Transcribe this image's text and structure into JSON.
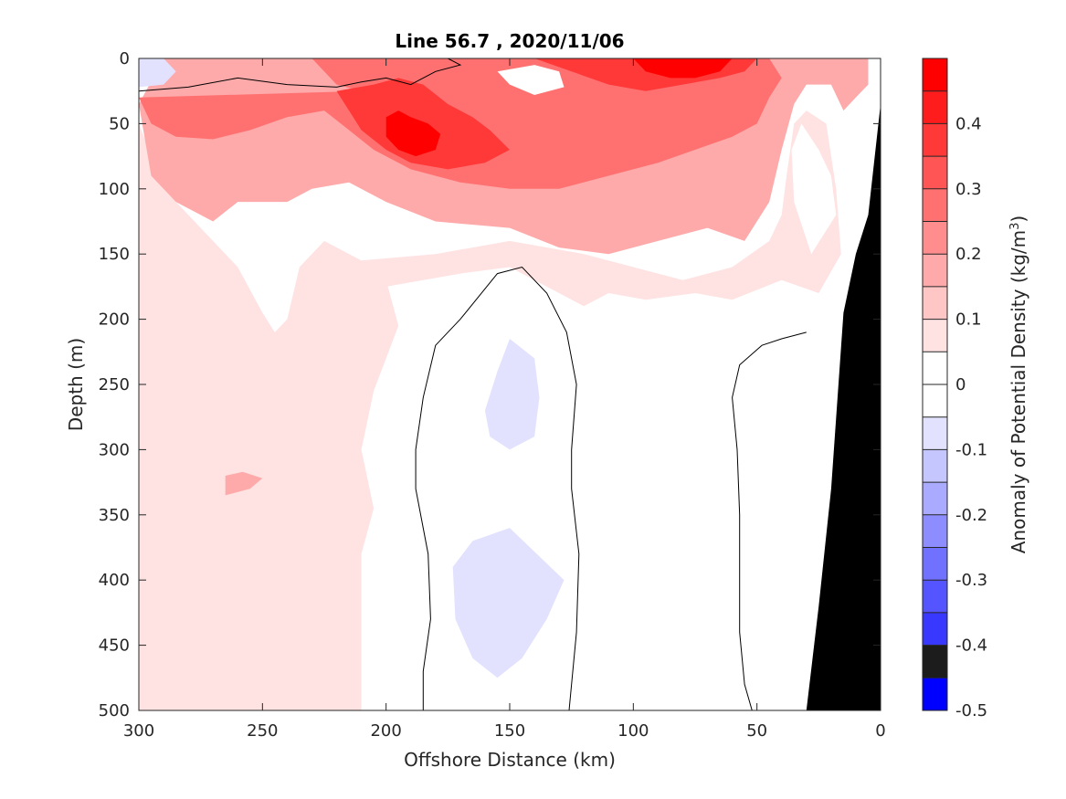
{
  "chart_data": {
    "type": "heatmap",
    "title": "Line 56.7 , 2020/11/06",
    "xlabel": "Offshore Distance (km)",
    "ylabel": "Depth (m)",
    "xlim": [
      300,
      0
    ],
    "ylim": [
      0,
      500
    ],
    "x_reversed": true,
    "y_reversed": true,
    "xticks": [
      "300",
      "250",
      "200",
      "150",
      "100",
      "50",
      "0"
    ],
    "yticks": [
      "0",
      "50",
      "100",
      "150",
      "200",
      "250",
      "300",
      "350",
      "400",
      "450",
      "500"
    ],
    "colorbar": {
      "label_main": "Anomaly of Potential Density (kg/m",
      "label_sup": "3",
      "label_close": ")",
      "clim": [
        -0.5,
        0.5
      ],
      "ticks": [
        "0.4",
        "0.3",
        "0.2",
        "0.1",
        "0",
        "-0.1",
        "-0.2",
        "-0.3",
        "-0.4",
        "-0.5"
      ],
      "levels": [
        {
          "lo": 0.45,
          "hi": 0.5,
          "color": "#ff0000"
        },
        {
          "lo": 0.4,
          "hi": 0.45,
          "color": "#ff1c1c"
        },
        {
          "lo": 0.35,
          "hi": 0.4,
          "color": "#ff3838"
        },
        {
          "lo": 0.3,
          "hi": 0.35,
          "color": "#ff5555"
        },
        {
          "lo": 0.25,
          "hi": 0.3,
          "color": "#ff7171"
        },
        {
          "lo": 0.2,
          "hi": 0.25,
          "color": "#ff8d8d"
        },
        {
          "lo": 0.15,
          "hi": 0.2,
          "color": "#ffaaaa"
        },
        {
          "lo": 0.1,
          "hi": 0.15,
          "color": "#ffc6c6"
        },
        {
          "lo": 0.05,
          "hi": 0.1,
          "color": "#ffe2e2"
        },
        {
          "lo": 0.0,
          "hi": 0.05,
          "color": "#ffffff"
        },
        {
          "lo": -0.05,
          "hi": 0.0,
          "color": "#ffffff"
        },
        {
          "lo": -0.1,
          "hi": -0.05,
          "color": "#e2e2ff"
        },
        {
          "lo": -0.15,
          "hi": -0.1,
          "color": "#c6c6ff"
        },
        {
          "lo": -0.2,
          "hi": -0.15,
          "color": "#aaaaff"
        },
        {
          "lo": -0.25,
          "hi": -0.2,
          "color": "#8d8dff"
        },
        {
          "lo": -0.3,
          "hi": -0.25,
          "color": "#7171ff"
        },
        {
          "lo": -0.35,
          "hi": -0.3,
          "color": "#5555ff"
        },
        {
          "lo": -0.4,
          "hi": -0.35,
          "color": "#3838ff"
        },
        {
          "lo": -0.45,
          "hi": -0.4,
          "color": "#1c1c1c"
        },
        {
          "lo": -0.5,
          "hi": -0.45,
          "color": "#0000ff"
        }
      ]
    },
    "regions": [
      {
        "name": "pale-pink-deep",
        "level": 0.075,
        "points": [
          [
            300,
            50
          ],
          [
            290,
            100
          ],
          [
            270,
            140
          ],
          [
            260,
            160
          ],
          [
            250,
            195
          ],
          [
            245,
            210
          ],
          [
            240,
            200
          ],
          [
            235,
            160
          ],
          [
            225,
            140
          ],
          [
            210,
            155
          ],
          [
            200,
            170
          ],
          [
            195,
            205
          ],
          [
            205,
            255
          ],
          [
            210,
            300
          ],
          [
            205,
            345
          ],
          [
            210,
            380
          ],
          [
            210,
            420
          ],
          [
            210,
            500
          ],
          [
            300,
            500
          ]
        ]
      },
      {
        "name": "pale-pink-upper",
        "level": 0.075,
        "points": [
          [
            210,
            155
          ],
          [
            180,
            150
          ],
          [
            150,
            140
          ],
          [
            120,
            150
          ],
          [
            100,
            160
          ],
          [
            80,
            170
          ],
          [
            60,
            160
          ],
          [
            45,
            140
          ],
          [
            40,
            120
          ],
          [
            38,
            90
          ],
          [
            35,
            50
          ],
          [
            30,
            40
          ],
          [
            22,
            50
          ],
          [
            18,
            100
          ],
          [
            16,
            150
          ],
          [
            25,
            180
          ],
          [
            40,
            170
          ],
          [
            60,
            185
          ],
          [
            75,
            180
          ],
          [
            95,
            185
          ],
          [
            110,
            180
          ],
          [
            120,
            190
          ],
          [
            135,
            175
          ],
          [
            150,
            160
          ],
          [
            170,
            165
          ],
          [
            200,
            175
          ]
        ]
      },
      {
        "name": "light-pink-layer",
        "level": 0.175,
        "points": [
          [
            300,
            35
          ],
          [
            295,
            90
          ],
          [
            285,
            110
          ],
          [
            270,
            125
          ],
          [
            260,
            110
          ],
          [
            240,
            110
          ],
          [
            230,
            100
          ],
          [
            215,
            95
          ],
          [
            200,
            110
          ],
          [
            180,
            125
          ],
          [
            150,
            130
          ],
          [
            130,
            145
          ],
          [
            110,
            150
          ],
          [
            90,
            140
          ],
          [
            70,
            130
          ],
          [
            55,
            140
          ],
          [
            45,
            110
          ],
          [
            40,
            70
          ],
          [
            35,
            35
          ],
          [
            30,
            20
          ],
          [
            20,
            20
          ],
          [
            15,
            40
          ],
          [
            10,
            30
          ],
          [
            5,
            20
          ],
          [
            5,
            0
          ],
          [
            290,
            0
          ]
        ]
      },
      {
        "name": "mid-pink-layer",
        "level": 0.275,
        "points": [
          [
            300,
            30
          ],
          [
            295,
            50
          ],
          [
            285,
            60
          ],
          [
            270,
            62
          ],
          [
            255,
            55
          ],
          [
            240,
            45
          ],
          [
            225,
            40
          ],
          [
            215,
            55
          ],
          [
            205,
            70
          ],
          [
            190,
            85
          ],
          [
            170,
            95
          ],
          [
            150,
            100
          ],
          [
            130,
            100
          ],
          [
            110,
            90
          ],
          [
            90,
            80
          ],
          [
            75,
            70
          ],
          [
            60,
            60
          ],
          [
            50,
            50
          ],
          [
            45,
            30
          ],
          [
            40,
            15
          ],
          [
            45,
            0
          ],
          [
            230,
            0
          ],
          [
            220,
            20
          ],
          [
            210,
            25
          ]
        ]
      },
      {
        "name": "red-core",
        "level": 0.375,
        "points": [
          [
            220,
            25
          ],
          [
            205,
            20
          ],
          [
            195,
            15
          ],
          [
            185,
            20
          ],
          [
            175,
            35
          ],
          [
            165,
            45
          ],
          [
            158,
            55
          ],
          [
            150,
            70
          ],
          [
            160,
            80
          ],
          [
            175,
            85
          ],
          [
            190,
            80
          ],
          [
            200,
            70
          ],
          [
            210,
            55
          ],
          [
            215,
            40
          ]
        ]
      },
      {
        "name": "red-surface",
        "level": 0.375,
        "points": [
          [
            160,
            0
          ],
          [
            140,
            0
          ],
          [
            125,
            10
          ],
          [
            110,
            20
          ],
          [
            95,
            25
          ],
          [
            80,
            20
          ],
          [
            65,
            15
          ],
          [
            55,
            10
          ],
          [
            50,
            0
          ]
        ]
      },
      {
        "name": "deep-red-core",
        "level": 0.45,
        "points": [
          [
            200,
            45
          ],
          [
            195,
            40
          ],
          [
            190,
            45
          ],
          [
            183,
            50
          ],
          [
            178,
            58
          ],
          [
            180,
            70
          ],
          [
            188,
            75
          ],
          [
            195,
            70
          ],
          [
            200,
            60
          ]
        ]
      },
      {
        "name": "deep-red-surface",
        "level": 0.45,
        "points": [
          [
            100,
            0
          ],
          [
            95,
            10
          ],
          [
            85,
            15
          ],
          [
            75,
            15
          ],
          [
            65,
            10
          ],
          [
            60,
            0
          ]
        ]
      },
      {
        "name": "white-cell-surface",
        "level": 0.0,
        "points": [
          [
            155,
            10
          ],
          [
            150,
            20
          ],
          [
            140,
            28
          ],
          [
            128,
            22
          ],
          [
            130,
            10
          ],
          [
            140,
            5
          ]
        ]
      },
      {
        "name": "white-cell-nearshore",
        "level": 0.0,
        "points": [
          [
            32,
            50
          ],
          [
            25,
            70
          ],
          [
            20,
            90
          ],
          [
            18,
            120
          ],
          [
            28,
            150
          ],
          [
            35,
            110
          ],
          [
            36,
            70
          ]
        ]
      },
      {
        "name": "blue-patch-upper",
        "level": -0.075,
        "points": [
          [
            150,
            215
          ],
          [
            155,
            240
          ],
          [
            160,
            270
          ],
          [
            158,
            290
          ],
          [
            150,
            300
          ],
          [
            140,
            290
          ],
          [
            138,
            260
          ],
          [
            140,
            230
          ]
        ]
      },
      {
        "name": "blue-patch-lower",
        "level": -0.075,
        "points": [
          [
            150,
            360
          ],
          [
            165,
            370
          ],
          [
            173,
            390
          ],
          [
            172,
            430
          ],
          [
            165,
            460
          ],
          [
            155,
            475
          ],
          [
            145,
            460
          ],
          [
            135,
            430
          ],
          [
            128,
            400
          ]
        ]
      },
      {
        "name": "blue-surface",
        "level": -0.075,
        "points": [
          [
            300,
            0
          ],
          [
            290,
            0
          ],
          [
            285,
            10
          ],
          [
            290,
            20
          ],
          [
            300,
            22
          ]
        ]
      },
      {
        "name": "pink-blob",
        "level": 0.175,
        "points": [
          [
            265,
            320
          ],
          [
            258,
            317
          ],
          [
            250,
            322
          ],
          [
            255,
            330
          ],
          [
            265,
            335
          ]
        ]
      }
    ],
    "contours": [
      {
        "name": "zero-contour-surface",
        "points": [
          [
            300,
            25
          ],
          [
            280,
            22
          ],
          [
            260,
            15
          ],
          [
            240,
            20
          ],
          [
            220,
            22
          ],
          [
            210,
            18
          ],
          [
            200,
            15
          ],
          [
            190,
            20
          ],
          [
            180,
            10
          ],
          [
            170,
            5
          ],
          [
            175,
            0
          ]
        ]
      },
      {
        "name": "zero-contour-offshore-cell",
        "points": [
          [
            185,
            500
          ],
          [
            185,
            470
          ],
          [
            182,
            430
          ],
          [
            183,
            380
          ],
          [
            188,
            330
          ],
          [
            188,
            300
          ],
          [
            185,
            260
          ],
          [
            180,
            220
          ],
          [
            170,
            200
          ],
          [
            155,
            165
          ],
          [
            145,
            160
          ],
          [
            135,
            180
          ],
          [
            127,
            210
          ],
          [
            123,
            250
          ],
          [
            125,
            300
          ],
          [
            125,
            330
          ],
          [
            122,
            380
          ],
          [
            123,
            440
          ],
          [
            125,
            480
          ],
          [
            126,
            500
          ]
        ]
      },
      {
        "name": "zero-contour-nearshore-cell",
        "points": [
          [
            52,
            500
          ],
          [
            55,
            480
          ],
          [
            57,
            440
          ],
          [
            57,
            400
          ],
          [
            57,
            350
          ],
          [
            58,
            300
          ],
          [
            60,
            260
          ],
          [
            57,
            235
          ],
          [
            48,
            220
          ],
          [
            40,
            215
          ],
          [
            30,
            210
          ]
        ]
      }
    ],
    "land": [
      [
        30,
        500
      ],
      [
        25,
        420
      ],
      [
        20,
        330
      ],
      [
        15,
        195
      ],
      [
        10,
        150
      ],
      [
        5,
        120
      ],
      [
        0,
        35
      ],
      [
        0,
        500
      ]
    ]
  }
}
